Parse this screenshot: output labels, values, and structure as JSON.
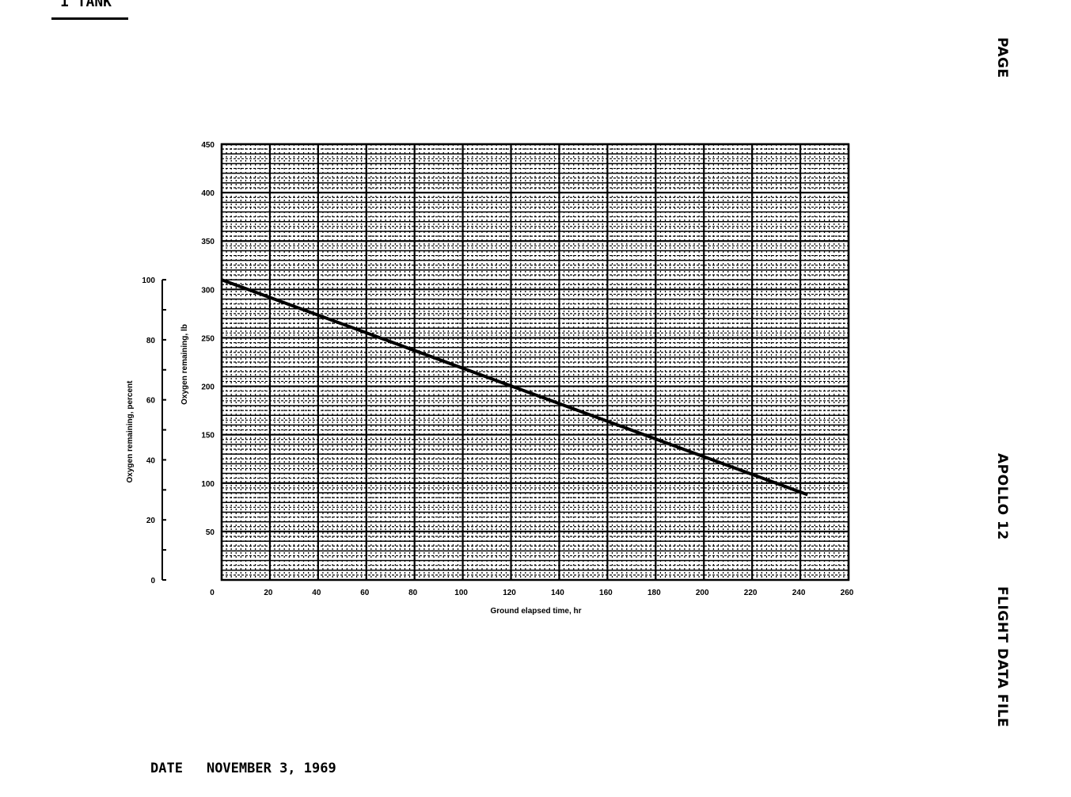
{
  "header": {
    "label": "1 TANK"
  },
  "side_labels": {
    "page": "PAGE",
    "mission": "APOLLO 12",
    "document": "FLIGHT DATA FILE"
  },
  "footer": {
    "date_label": "DATE",
    "date_value": "NOVEMBER 3, 1969"
  },
  "chart_data": {
    "type": "line",
    "title": "",
    "xlabel": "Ground elapsed time, hr",
    "ylabel": "Oxygen remaining, lb",
    "ylabel_secondary": "Oxygen remaining, percent",
    "xlim": [
      0,
      260
    ],
    "ylim": [
      0,
      450
    ],
    "ylim_secondary": [
      0,
      100
    ],
    "x_ticks": [
      "0",
      "20",
      "40",
      "60",
      "80",
      "100",
      "120",
      "140",
      "160",
      "180",
      "200",
      "220",
      "240",
      "260"
    ],
    "y_ticks": [
      "50",
      "100",
      "150",
      "200",
      "250",
      "300",
      "350",
      "400",
      "450"
    ],
    "y_ticks_secondary": [
      "0",
      "20",
      "40",
      "60",
      "80",
      "100"
    ],
    "grid": true,
    "series": [
      {
        "x": [
          0,
          243
        ],
        "y": [
          310,
          88
        ],
        "color": "#000000"
      }
    ]
  }
}
